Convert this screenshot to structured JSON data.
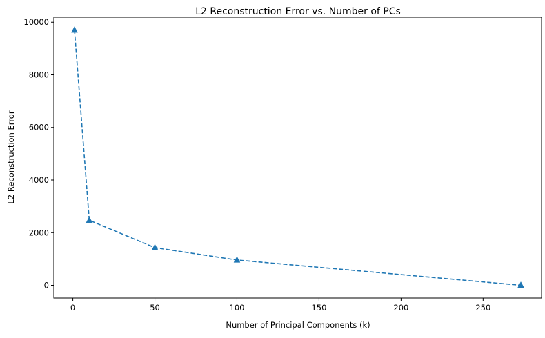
{
  "chart_data": {
    "type": "line",
    "title": "L2 Reconstruction Error vs. Number of PCs",
    "xlabel": "Number of Principal Components (k)",
    "ylabel": "L2 Reconstruction Error",
    "xlim": [
      -11.6,
      285.6
    ],
    "ylim": [
      -485,
      10190
    ],
    "xticks": [
      0,
      50,
      100,
      150,
      200,
      250
    ],
    "yticks": [
      0,
      2000,
      4000,
      6000,
      8000,
      10000
    ],
    "grid": false,
    "series": [
      {
        "x": [
          1,
          10,
          50,
          100,
          273
        ],
        "values": [
          9700,
          2470,
          1430,
          960,
          0
        ],
        "color": "#1f77b4",
        "linestyle": "dashed",
        "marker": "triangle-up"
      }
    ]
  }
}
